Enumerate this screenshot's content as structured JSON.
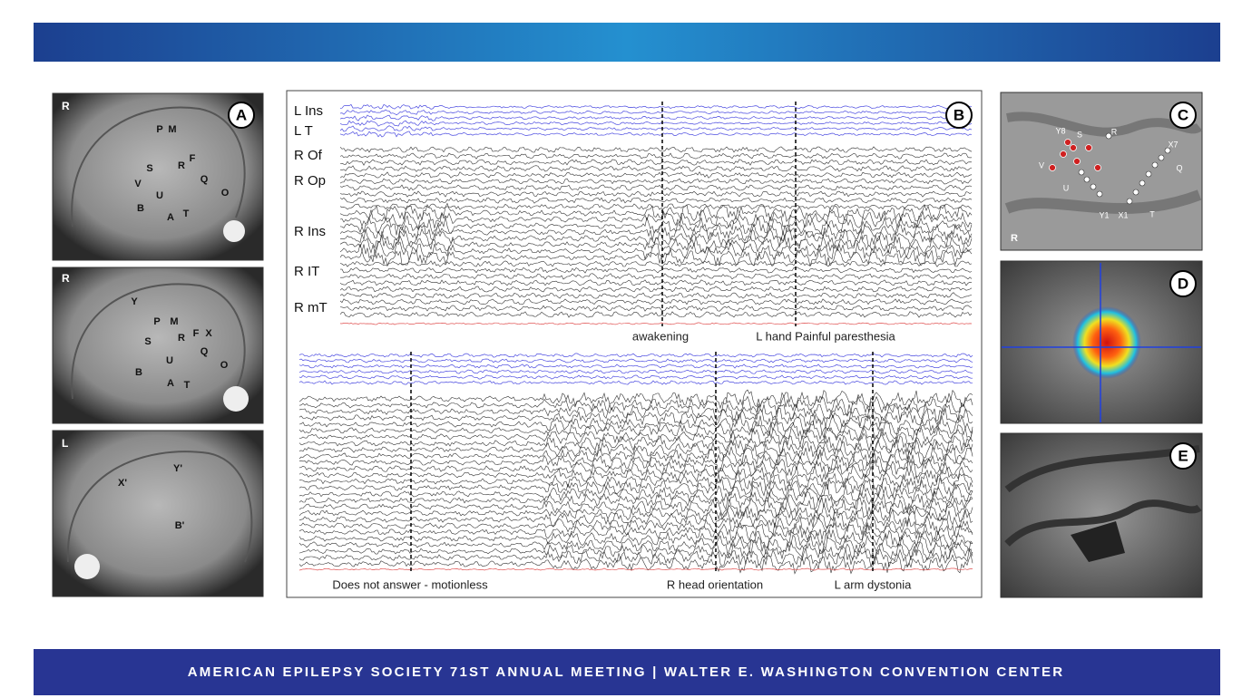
{
  "panel_a": {
    "label": "A",
    "images": [
      {
        "side": "R",
        "labels": [
          "P",
          "M",
          "S",
          "R",
          "F",
          "V",
          "U",
          "Q",
          "O",
          "B",
          "A",
          "T"
        ]
      },
      {
        "side": "R",
        "labels": [
          "Y",
          "P",
          "M",
          "S",
          "R",
          "F",
          "X",
          "U",
          "Q",
          "O",
          "B",
          "A",
          "T"
        ]
      },
      {
        "side": "L",
        "labels": [
          "X'",
          "Y'",
          "B'"
        ]
      }
    ]
  },
  "panel_b": {
    "label": "B",
    "top": {
      "channels": [
        "L Ins",
        "L T",
        "R Of",
        "R Op",
        "R Ins",
        "R IT",
        "R mT"
      ],
      "events": [
        "awakening",
        "L hand Painful paresthesia"
      ]
    },
    "bottom": {
      "events": [
        "Does not answer - motionless",
        "R head orientation",
        "L arm dystonia"
      ]
    }
  },
  "panel_c": {
    "label": "C",
    "side": "R",
    "contacts": [
      "Y8",
      "S",
      "R",
      "X7",
      "Q",
      "V",
      "U",
      "Y1",
      "X1",
      "T"
    ]
  },
  "panel_d": {
    "label": "D"
  },
  "panel_e": {
    "label": "E"
  },
  "footer": {
    "text": "AMERICAN EPILEPSY SOCIETY 71ST ANNUAL MEETING | WALTER E. WASHINGTON CONVENTION CENTER"
  }
}
